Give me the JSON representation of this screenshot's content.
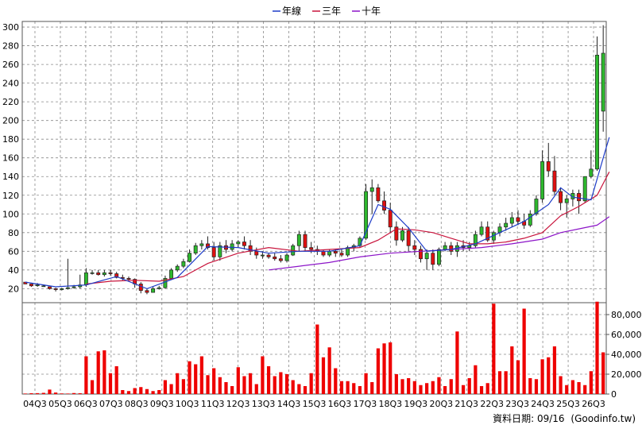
{
  "chart_data": {
    "type": "candlestick-volume",
    "legend": [
      {
        "label": "年線",
        "color": "#1e3cc8"
      },
      {
        "label": "三年",
        "color": "#c8143c"
      },
      {
        "label": "十年",
        "color": "#8c14c8"
      }
    ],
    "legend_placement": "top-center",
    "price_axis": {
      "ticks": [
        20,
        40,
        60,
        80,
        100,
        120,
        140,
        160,
        180,
        200,
        220,
        240,
        260,
        280,
        300
      ],
      "ylim": [
        5,
        306
      ]
    },
    "volume_axis": {
      "ticks": [
        0,
        20000,
        40000,
        60000,
        80000
      ],
      "tick_labels": [
        "0",
        "20,000",
        "40,000",
        "60,000",
        "80,000"
      ],
      "ylim": [
        0,
        92000
      ]
    },
    "x_tick_labels": [
      "04Q3",
      "05Q3",
      "06Q3",
      "07Q3",
      "08Q3",
      "09Q3",
      "10Q3",
      "11Q3",
      "12Q3",
      "13Q3",
      "14Q3",
      "15Q3",
      "16Q3",
      "17Q3",
      "18Q3",
      "19Q3",
      "20Q3",
      "21Q3",
      "22Q3",
      "23Q3",
      "24Q3",
      "25Q3",
      "26Q3"
    ],
    "grid": true,
    "colors": {
      "up": "#2db82d",
      "down": "#e01010",
      "volume": "#ee0000",
      "grid": "#8a8a8a"
    },
    "candles": [
      [
        27,
        27,
        25,
        25
      ],
      [
        25,
        25,
        22,
        23
      ],
      [
        24,
        26,
        22,
        24
      ],
      [
        23,
        24,
        22,
        23
      ],
      [
        22,
        22,
        19,
        20
      ],
      [
        20,
        21,
        17,
        19
      ],
      [
        19,
        21,
        18,
        20
      ],
      [
        20,
        52,
        19,
        21
      ],
      [
        21,
        24,
        20,
        22
      ],
      [
        22,
        35,
        20,
        24
      ],
      [
        24,
        42,
        22,
        37
      ],
      [
        37,
        40,
        35,
        37
      ],
      [
        37,
        40,
        34,
        35
      ],
      [
        35,
        40,
        33,
        37
      ],
      [
        37,
        40,
        34,
        36
      ],
      [
        36,
        38,
        31,
        32
      ],
      [
        32,
        35,
        29,
        31
      ],
      [
        31,
        33,
        28,
        30
      ],
      [
        30,
        31,
        21,
        25
      ],
      [
        25,
        27,
        15,
        18
      ],
      [
        18,
        20,
        14,
        16
      ],
      [
        16,
        22,
        16,
        20
      ],
      [
        20,
        23,
        19,
        21
      ],
      [
        21,
        34,
        20,
        31
      ],
      [
        31,
        42,
        30,
        40
      ],
      [
        40,
        46,
        38,
        44
      ],
      [
        44,
        52,
        42,
        49
      ],
      [
        49,
        62,
        48,
        58
      ],
      [
        58,
        69,
        56,
        66
      ],
      [
        66,
        72,
        62,
        68
      ],
      [
        68,
        76,
        62,
        64
      ],
      [
        64,
        70,
        50,
        54
      ],
      [
        54,
        70,
        50,
        66
      ],
      [
        66,
        72,
        58,
        62
      ],
      [
        62,
        72,
        60,
        68
      ],
      [
        68,
        72,
        64,
        70
      ],
      [
        70,
        76,
        62,
        66
      ],
      [
        66,
        72,
        56,
        60
      ],
      [
        60,
        64,
        52,
        56
      ],
      [
        56,
        60,
        52,
        56
      ],
      [
        56,
        58,
        52,
        54
      ],
      [
        54,
        58,
        50,
        52
      ],
      [
        52,
        56,
        48,
        50
      ],
      [
        50,
        58,
        48,
        56
      ],
      [
        56,
        68,
        55,
        66
      ],
      [
        66,
        82,
        60,
        78
      ],
      [
        78,
        82,
        60,
        64
      ],
      [
        64,
        70,
        58,
        62
      ],
      [
        62,
        66,
        56,
        60
      ],
      [
        60,
        62,
        54,
        56
      ],
      [
        56,
        62,
        54,
        60
      ],
      [
        60,
        62,
        54,
        58
      ],
      [
        58,
        62,
        54,
        56
      ],
      [
        56,
        66,
        54,
        64
      ],
      [
        64,
        68,
        60,
        66
      ],
      [
        66,
        76,
        64,
        74
      ],
      [
        74,
        132,
        72,
        124
      ],
      [
        124,
        137,
        100,
        128
      ],
      [
        128,
        132,
        112,
        114
      ],
      [
        114,
        124,
        100,
        104
      ],
      [
        104,
        112,
        80,
        86
      ],
      [
        86,
        92,
        66,
        72
      ],
      [
        72,
        86,
        70,
        82
      ],
      [
        82,
        86,
        60,
        66
      ],
      [
        66,
        72,
        56,
        62
      ],
      [
        62,
        66,
        48,
        52
      ],
      [
        52,
        62,
        40,
        58
      ],
      [
        58,
        62,
        40,
        46
      ],
      [
        46,
        64,
        44,
        62
      ],
      [
        62,
        70,
        60,
        66
      ],
      [
        66,
        70,
        56,
        60
      ],
      [
        60,
        70,
        54,
        66
      ],
      [
        66,
        72,
        60,
        64
      ],
      [
        64,
        70,
        60,
        66
      ],
      [
        66,
        82,
        64,
        78
      ],
      [
        78,
        92,
        76,
        86
      ],
      [
        86,
        92,
        70,
        72
      ],
      [
        72,
        82,
        68,
        80
      ],
      [
        80,
        90,
        76,
        86
      ],
      [
        86,
        96,
        82,
        90
      ],
      [
        90,
        102,
        86,
        96
      ],
      [
        96,
        104,
        88,
        92
      ],
      [
        92,
        100,
        84,
        88
      ],
      [
        88,
        104,
        86,
        100
      ],
      [
        100,
        120,
        98,
        116
      ],
      [
        116,
        168,
        112,
        156
      ],
      [
        156,
        176,
        140,
        146
      ],
      [
        146,
        162,
        120,
        124
      ],
      [
        124,
        128,
        104,
        112
      ],
      [
        112,
        120,
        96,
        116
      ],
      [
        116,
        126,
        108,
        122
      ],
      [
        122,
        126,
        100,
        114
      ],
      [
        114,
        140,
        112,
        140
      ],
      [
        140,
        168,
        138,
        148
      ],
      [
        148,
        290,
        146,
        270
      ],
      [
        210,
        302,
        188,
        272
      ]
    ],
    "volume": [
      500,
      800,
      900,
      1200,
      4500,
      1500,
      600,
      500,
      1000,
      800,
      38000,
      14000,
      43000,
      44000,
      21000,
      28000,
      4000,
      3000,
      6000,
      7000,
      5000,
      3000,
      4000,
      14000,
      10000,
      21000,
      15000,
      33000,
      30000,
      38000,
      19000,
      26000,
      17000,
      12000,
      8000,
      27000,
      18000,
      21000,
      10000,
      38000,
      28000,
      18000,
      22000,
      20000,
      14000,
      10000,
      8000,
      21000,
      70000,
      37000,
      47000,
      26000,
      13000,
      13000,
      11000,
      8000,
      21000,
      12000,
      46000,
      51000,
      52000,
      20000,
      15000,
      16000,
      13000,
      9000,
      11000,
      13000,
      17000,
      8000,
      15000,
      63000,
      9000,
      16000,
      29000,
      8000,
      11000,
      91000,
      23000,
      23000,
      48000,
      34000,
      86000,
      16000,
      15000,
      35000,
      37000,
      48000,
      18000,
      9000,
      14000,
      12000,
      9000,
      23000,
      93000,
      42000
    ],
    "ma_year": [
      [
        0,
        27
      ],
      [
        5,
        22
      ],
      [
        10,
        24
      ],
      [
        15,
        33
      ],
      [
        20,
        20
      ],
      [
        25,
        32
      ],
      [
        30,
        65
      ],
      [
        35,
        64
      ],
      [
        40,
        58
      ],
      [
        45,
        60
      ],
      [
        50,
        60
      ],
      [
        55,
        66
      ],
      [
        58,
        110
      ],
      [
        60,
        105
      ],
      [
        63,
        85
      ],
      [
        66,
        60
      ],
      [
        70,
        62
      ],
      [
        74,
        68
      ],
      [
        78,
        80
      ],
      [
        82,
        92
      ],
      [
        86,
        110
      ],
      [
        88,
        128
      ],
      [
        90,
        118
      ],
      [
        93,
        115
      ],
      [
        95,
        160
      ],
      [
        96,
        182
      ]
    ],
    "ma_three": [
      [
        10,
        25
      ],
      [
        14,
        28
      ],
      [
        18,
        29
      ],
      [
        22,
        28
      ],
      [
        26,
        33
      ],
      [
        30,
        47
      ],
      [
        35,
        58
      ],
      [
        40,
        64
      ],
      [
        45,
        60
      ],
      [
        50,
        62
      ],
      [
        55,
        64
      ],
      [
        58,
        72
      ],
      [
        61,
        84
      ],
      [
        64,
        83
      ],
      [
        67,
        80
      ],
      [
        70,
        74
      ],
      [
        73,
        68
      ],
      [
        76,
        68
      ],
      [
        79,
        70
      ],
      [
        82,
        74
      ],
      [
        85,
        80
      ],
      [
        88,
        98
      ],
      [
        91,
        108
      ],
      [
        94,
        120
      ],
      [
        96,
        145
      ]
    ],
    "ma_ten": [
      [
        40,
        40
      ],
      [
        45,
        44
      ],
      [
        50,
        48
      ],
      [
        55,
        54
      ],
      [
        60,
        58
      ],
      [
        65,
        60
      ],
      [
        70,
        62
      ],
      [
        75,
        64
      ],
      [
        80,
        68
      ],
      [
        85,
        73
      ],
      [
        88,
        80
      ],
      [
        91,
        84
      ],
      [
        94,
        88
      ],
      [
        96,
        97
      ]
    ]
  },
  "footer": {
    "label": "資料日期: 09/16",
    "brand": "(Goodinfo.tw)"
  }
}
